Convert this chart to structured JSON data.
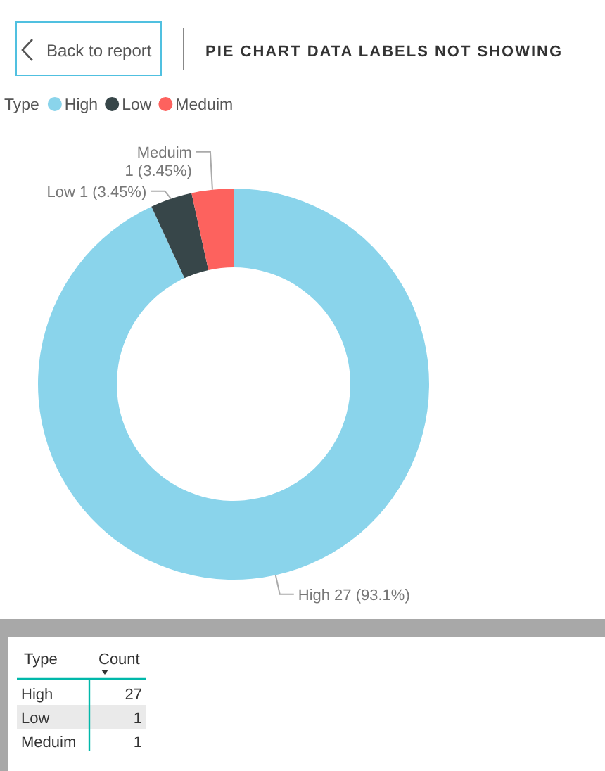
{
  "chart_data": [
    {
      "type": "donut",
      "title": "PIE CHART DATA LABELS NOT SHOWING",
      "legend_title": "Type",
      "categories": [
        "High",
        "Low",
        "Meduim"
      ],
      "values": [
        27,
        1,
        1
      ],
      "colors": [
        "#8ad4eb",
        "#374649",
        "#fd625e"
      ],
      "value_labels": [
        "27 (93.1%)",
        "1 (3.45%)",
        "1 (3.45%)"
      ],
      "legend": "top left",
      "annotations": [
        "Back to report"
      ]
    },
    {
      "type": "other",
      "xlabel": "Type",
      "ylabel": "Count",
      "categories": [
        "High",
        "Low",
        "Meduim"
      ],
      "values": [
        27,
        1,
        1
      ],
      "data_labels": true
    }
  ]
}
